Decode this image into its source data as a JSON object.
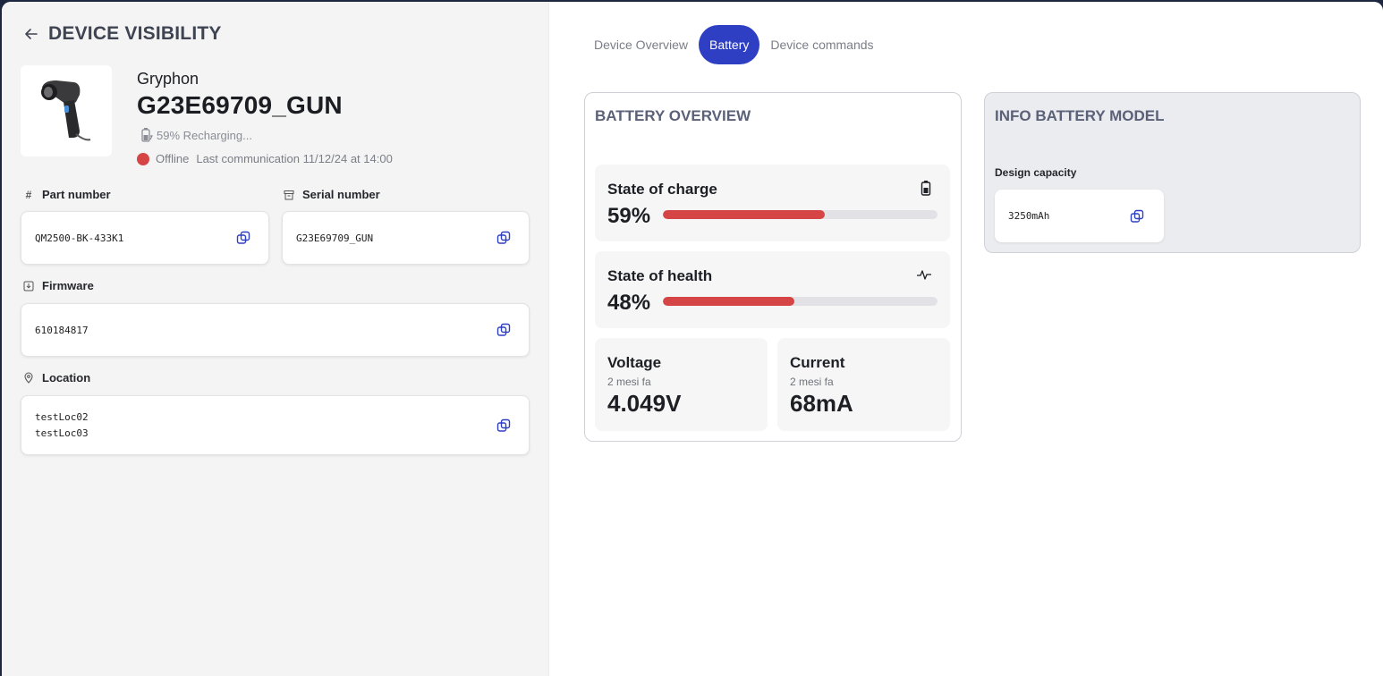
{
  "header": {
    "title": "DEVICE VISIBILITY"
  },
  "device": {
    "brand": "Gryphon",
    "name": "G23E69709_GUN",
    "battery_status": "59% Recharging...",
    "connection_status": "Offline",
    "last_communication": "Last communication 11/12/24 at 14:00"
  },
  "fields": {
    "part_number": {
      "label": "Part number",
      "value": "QM2500-BK-433K1"
    },
    "serial_number": {
      "label": "Serial number",
      "value": "G23E69709_GUN"
    },
    "firmware": {
      "label": "Firmware",
      "value": "610184817"
    },
    "location": {
      "label": "Location",
      "values": [
        "testLoc02",
        "testLoc03"
      ]
    }
  },
  "tabs": [
    {
      "label": "Device Overview",
      "active": false
    },
    {
      "label": "Battery",
      "active": true
    },
    {
      "label": "Device commands",
      "active": false
    }
  ],
  "battery_overview": {
    "title": "BATTERY OVERVIEW",
    "state_of_charge": {
      "label": "State of charge",
      "value": "59%",
      "percent": 59
    },
    "state_of_health": {
      "label": "State of health",
      "value": "48%",
      "percent": 48
    },
    "voltage": {
      "label": "Voltage",
      "time": "2 mesi fa",
      "value": "4.049V"
    },
    "current": {
      "label": "Current",
      "time": "2 mesi fa",
      "value": "68mA"
    }
  },
  "battery_model": {
    "title": "INFO BATTERY MODEL",
    "design_capacity_label": "Design capacity",
    "design_capacity_value": "3250mAh"
  },
  "colors": {
    "accent": "#2f3fc4",
    "danger": "#d64545",
    "frame": "#1e2740"
  }
}
